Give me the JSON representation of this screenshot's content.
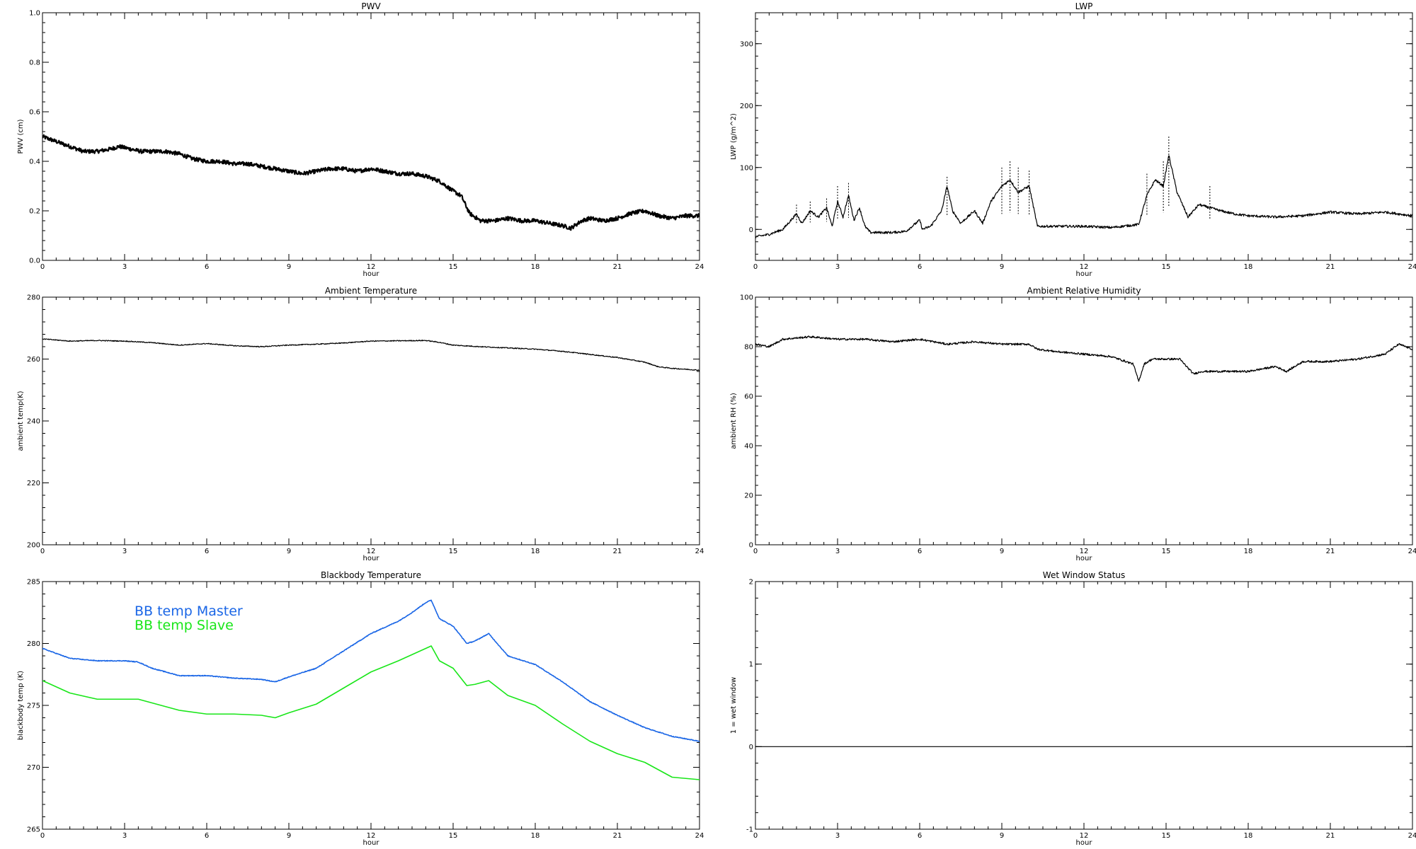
{
  "chart_data": [
    {
      "id": "pwv",
      "type": "line",
      "title": "PWV",
      "xlabel": "hour",
      "ylabel": "PWV (cm)",
      "xlim": [
        0,
        24
      ],
      "ylim": [
        0.0,
        1.0
      ],
      "xticks": [
        0,
        3,
        6,
        9,
        12,
        15,
        18,
        21,
        24
      ],
      "yticks": [
        "0.0",
        "0.2",
        "0.4",
        "0.6",
        "0.8",
        "1.0"
      ],
      "y_tick_values": [
        0,
        0.2,
        0.4,
        0.6,
        0.8,
        1.0
      ],
      "noise": 0.008,
      "series": [
        {
          "color": "#000000",
          "x": [
            0,
            0.5,
            1,
            1.5,
            2,
            2.5,
            2.8,
            3.2,
            3.6,
            4,
            4.5,
            5,
            5.5,
            6,
            6.5,
            7,
            7.5,
            8,
            8.5,
            9,
            9.5,
            10,
            10.5,
            11,
            11.5,
            12,
            12.5,
            13,
            13.5,
            14,
            14.5,
            15,
            15.3,
            15.6,
            16,
            16.5,
            17,
            17.5,
            18,
            18.5,
            19,
            19.3,
            19.7,
            20,
            20.5,
            21,
            21.5,
            22,
            22.5,
            23,
            23.5,
            24
          ],
          "y": [
            0.5,
            0.48,
            0.46,
            0.44,
            0.44,
            0.45,
            0.46,
            0.45,
            0.44,
            0.44,
            0.44,
            0.43,
            0.41,
            0.4,
            0.4,
            0.39,
            0.39,
            0.38,
            0.37,
            0.36,
            0.35,
            0.36,
            0.37,
            0.37,
            0.36,
            0.37,
            0.36,
            0.35,
            0.35,
            0.34,
            0.32,
            0.28,
            0.26,
            0.19,
            0.16,
            0.16,
            0.17,
            0.16,
            0.16,
            0.15,
            0.14,
            0.13,
            0.16,
            0.17,
            0.16,
            0.17,
            0.19,
            0.2,
            0.18,
            0.17,
            0.18,
            0.18
          ]
        }
      ]
    },
    {
      "id": "lwp",
      "type": "line",
      "title": "LWP",
      "xlabel": "hour",
      "ylabel": "LWP (g/m^2)",
      "xlim": [
        0,
        24
      ],
      "ylim": [
        -50,
        350
      ],
      "xticks": [
        0,
        3,
        6,
        9,
        12,
        15,
        18,
        21,
        24
      ],
      "yticks": [
        "0",
        "100",
        "200",
        "300"
      ],
      "y_tick_values": [
        0,
        100,
        200,
        300
      ],
      "noise": 2,
      "series": [
        {
          "color": "#000000",
          "x": [
            0,
            0.5,
            1,
            1.5,
            1.7,
            2,
            2.3,
            2.6,
            2.8,
            3,
            3.2,
            3.4,
            3.6,
            3.8,
            4,
            4.2,
            5,
            5.5,
            6,
            6.1,
            6.4,
            6.8,
            7,
            7.2,
            7.5,
            8,
            8.3,
            8.6,
            9,
            9.3,
            9.6,
            10,
            10.3,
            11,
            12,
            13,
            14,
            14.3,
            14.6,
            14.9,
            15.1,
            15.4,
            15.8,
            16.2,
            16.6,
            17,
            17.5,
            18,
            19,
            20,
            21,
            22,
            23,
            24
          ],
          "y": [
            -12,
            -8,
            0,
            25,
            10,
            30,
            20,
            35,
            5,
            45,
            20,
            55,
            15,
            35,
            5,
            -5,
            -5,
            -3,
            15,
            0,
            5,
            30,
            70,
            30,
            10,
            30,
            10,
            45,
            70,
            80,
            60,
            70,
            5,
            5,
            5,
            3,
            8,
            55,
            80,
            70,
            120,
            60,
            20,
            40,
            35,
            30,
            25,
            22,
            20,
            22,
            28,
            25,
            28,
            22
          ]
        },
        {
          "color": "#000000",
          "x": [
            1.5,
            2,
            2.6,
            3,
            3.4,
            7,
            9,
            9.3,
            9.6,
            10,
            14.3,
            14.9,
            15.1,
            16.6
          ],
          "y": [
            40,
            45,
            50,
            70,
            75,
            85,
            100,
            110,
            100,
            95,
            90,
            110,
            150,
            70
          ]
        }
      ]
    },
    {
      "id": "ambient-temp",
      "type": "line",
      "title": "Ambient Temperature",
      "xlabel": "hour",
      "ylabel": "ambient temp(K)",
      "xlim": [
        0,
        24
      ],
      "ylim": [
        200,
        280
      ],
      "xticks": [
        0,
        3,
        6,
        9,
        12,
        15,
        18,
        21,
        24
      ],
      "yticks": [
        "200",
        "220",
        "240",
        "260",
        "280"
      ],
      "y_tick_values": [
        200,
        220,
        240,
        260,
        280
      ],
      "noise": 0.15,
      "series": [
        {
          "color": "#000000",
          "x": [
            0,
            1,
            2,
            3,
            4,
            5,
            6,
            7,
            8,
            9,
            10,
            11,
            12,
            13,
            14,
            14.5,
            15,
            16,
            17,
            18,
            19,
            20,
            21,
            22,
            22.5,
            23,
            24
          ],
          "y": [
            266.5,
            265.8,
            266.0,
            265.8,
            265.3,
            264.5,
            265.0,
            264.3,
            264.0,
            264.5,
            264.8,
            265.2,
            265.8,
            265.9,
            266.0,
            265.4,
            264.5,
            264.0,
            263.6,
            263.2,
            262.5,
            261.5,
            260.5,
            259.0,
            257.5,
            257.0,
            256.4
          ]
        }
      ]
    },
    {
      "id": "ambient-rh",
      "type": "line",
      "title": "Ambient Relative Humidity",
      "xlabel": "hour",
      "ylabel": "ambient RH (%)",
      "xlim": [
        0,
        24
      ],
      "ylim": [
        0,
        100
      ],
      "xticks": [
        0,
        3,
        6,
        9,
        12,
        15,
        18,
        21,
        24
      ],
      "yticks": [
        "0",
        "20",
        "40",
        "60",
        "80",
        "100"
      ],
      "y_tick_values": [
        0,
        20,
        40,
        60,
        80,
        100
      ],
      "noise": 0.4,
      "series": [
        {
          "color": "#000000",
          "x": [
            0,
            0.5,
            1,
            2,
            3,
            4,
            5,
            6,
            7,
            8,
            9,
            10,
            10.3,
            11,
            12,
            13,
            13.8,
            14,
            14.2,
            14.5,
            15,
            15.5,
            16,
            16.3,
            17,
            18,
            19,
            19.4,
            20,
            21,
            22,
            23,
            23.5,
            24
          ],
          "y": [
            81,
            80,
            83,
            84,
            83,
            83,
            82,
            83,
            81,
            82,
            81,
            81,
            79,
            78,
            77,
            76,
            73,
            66,
            73,
            75,
            75,
            75,
            69,
            70,
            70,
            70,
            72,
            70,
            74,
            74,
            75,
            77,
            81,
            79
          ]
        }
      ]
    },
    {
      "id": "bb-temp",
      "type": "line",
      "title": "Blackbody Temperature",
      "xlabel": "hour",
      "ylabel": "blackbody temp (K)",
      "xlim": [
        0,
        24
      ],
      "ylim": [
        265,
        285
      ],
      "xticks": [
        0,
        3,
        6,
        9,
        12,
        15,
        18,
        21,
        24
      ],
      "yticks": [
        "265",
        "270",
        "275",
        "280",
        "285"
      ],
      "y_tick_values": [
        265,
        270,
        275,
        280,
        285
      ],
      "noise": 0.03,
      "legend": [
        "BB temp Master",
        "BB temp Slave"
      ],
      "series": [
        {
          "name": "BB temp Master",
          "color": "#1a66e6",
          "x": [
            0,
            1,
            2,
            3,
            3.5,
            4,
            5,
            6,
            7,
            8,
            8.5,
            9,
            10,
            11,
            12,
            13,
            13.5,
            14,
            14.2,
            14.5,
            15,
            15.5,
            15.8,
            16.3,
            17,
            18,
            19,
            20,
            21,
            22,
            23,
            24
          ],
          "y": [
            279.6,
            278.8,
            278.6,
            278.6,
            278.5,
            278.0,
            277.4,
            277.4,
            277.2,
            277.1,
            276.9,
            277.3,
            278.0,
            279.4,
            280.8,
            281.8,
            282.5,
            283.3,
            283.5,
            282.0,
            281.4,
            280.0,
            280.2,
            280.8,
            279.0,
            278.3,
            276.9,
            275.3,
            274.2,
            273.2,
            272.5,
            272.1
          ]
        },
        {
          "name": "BB temp Slave",
          "color": "#19e619",
          "x": [
            0,
            1,
            2,
            3,
            3.5,
            4,
            5,
            6,
            7,
            8,
            8.5,
            9,
            10,
            11,
            12,
            13,
            13.5,
            14,
            14.2,
            14.5,
            15,
            15.5,
            15.8,
            16.3,
            17,
            18,
            19,
            20,
            21,
            22,
            23,
            24
          ],
          "y": [
            277.0,
            276.0,
            275.5,
            275.5,
            275.5,
            275.2,
            274.6,
            274.3,
            274.3,
            274.2,
            274.0,
            274.4,
            275.1,
            276.4,
            277.7,
            278.6,
            279.1,
            279.6,
            279.8,
            278.6,
            278.0,
            276.6,
            276.7,
            277.0,
            275.8,
            275.0,
            273.5,
            272.1,
            271.1,
            270.4,
            269.2,
            269.0
          ]
        }
      ]
    },
    {
      "id": "wet-window",
      "type": "line",
      "title": "Wet Window Status",
      "xlabel": "hour",
      "ylabel": "1 = wet window",
      "xlim": [
        0,
        24
      ],
      "ylim": [
        -1,
        2
      ],
      "xticks": [
        0,
        3,
        6,
        9,
        12,
        15,
        18,
        21,
        24
      ],
      "yticks": [
        "-1",
        "0",
        "1",
        "2"
      ],
      "y_tick_values": [
        -1,
        0,
        1,
        2
      ],
      "noise": 0,
      "series": [
        {
          "color": "#000000",
          "x": [
            0,
            24
          ],
          "y": [
            0,
            0
          ]
        }
      ]
    }
  ]
}
